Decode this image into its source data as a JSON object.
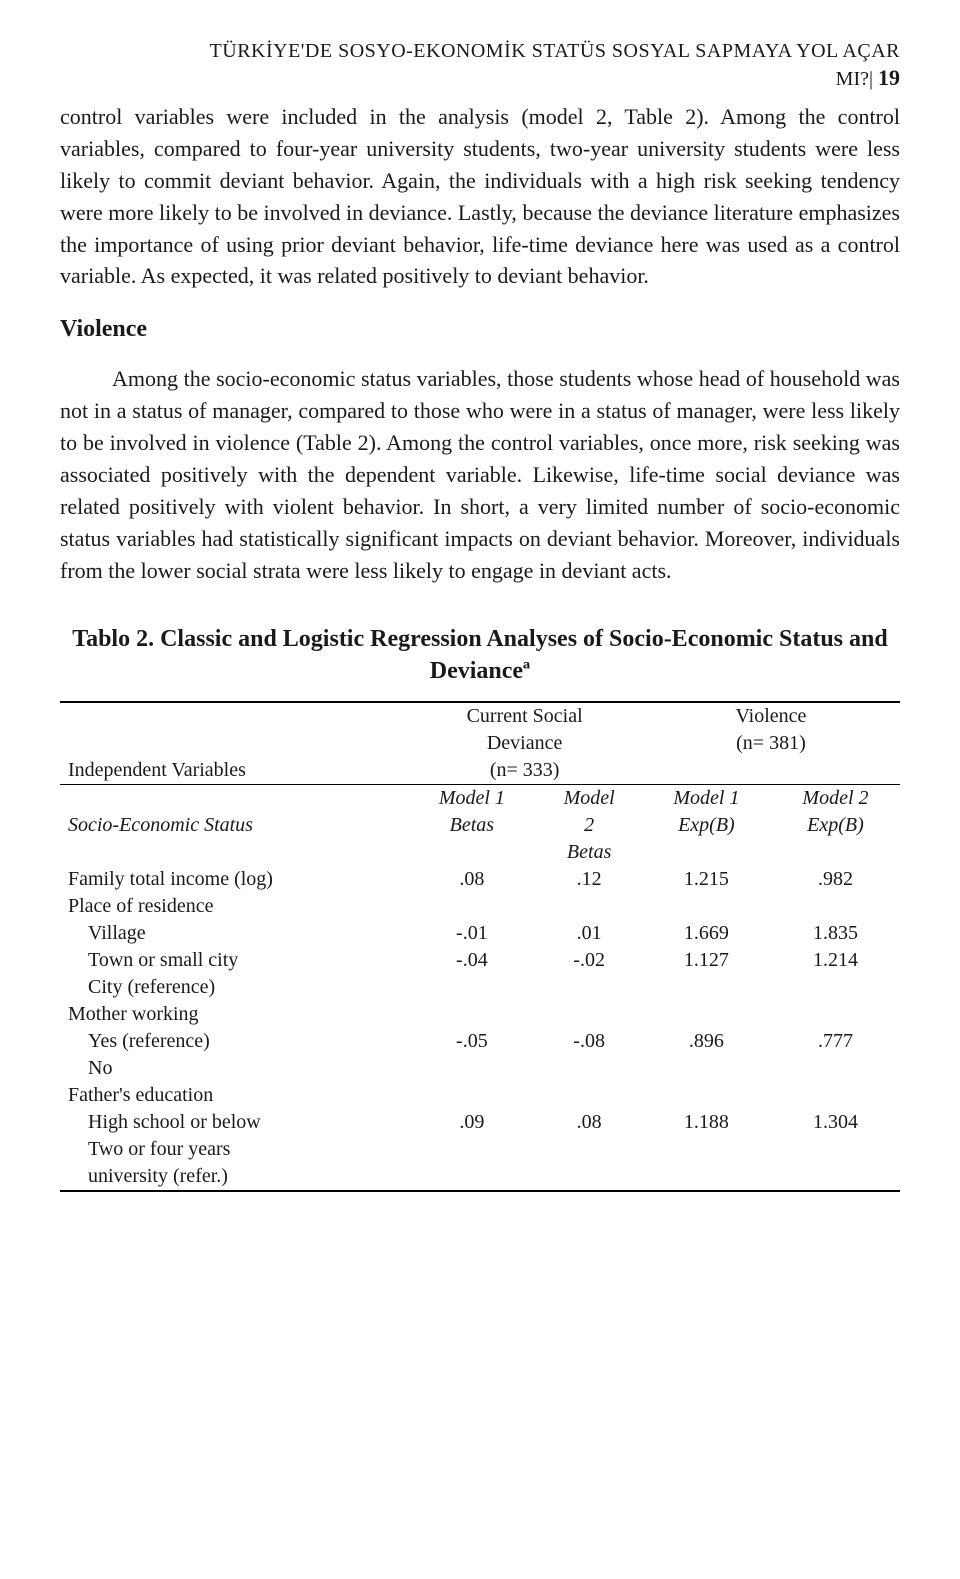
{
  "header": {
    "running_title": "TÜRKİYE'DE SOSYO-EKONOMİK STATÜS SOSYAL SAPMAYA YOL AÇAR",
    "running_title_2_prefix": "MI?| ",
    "page_number": "19"
  },
  "para1": "control variables were included in the analysis (model 2, Table 2). Among the control variables, compared to four-year university students, two-year university students were less likely to commit deviant behavior. Again, the individuals with a high risk seeking tendency were more likely to be involved in deviance. Lastly, because the deviance literature emphasizes the importance of using prior deviant behavior, life-time deviance here was used as a control variable. As expected, it was related positively to deviant behavior.",
  "section_heading": "Violence",
  "para2": "Among the socio-economic status variables, those students whose head of household was not in a status of manager, compared to those who were in a status of manager, were less likely to be involved in violence (Table 2). Among the control variables, once more, risk seeking was associated positively with the dependent variable. Likewise, life-time social deviance was related positively with violent behavior. In short, a very limited number of socio-economic status variables had statistically significant impacts on deviant behavior. Moreover, individuals from the lower social strata were less likely to engage in deviant acts.",
  "table": {
    "title": "Tablo 2. Classic and Logistic Regression Analyses of Socio-Economic Status and Devianceª",
    "header": {
      "indep_label": "Independent Variables",
      "col_group_1_line1": "Current Social",
      "col_group_1_line2": "Deviance",
      "col_group_1_line3": "(n= 333)",
      "col_group_2_line1": "Violence",
      "col_group_2_line2": "(n= 381)",
      "subhead_label": "Socio-Economic Status",
      "m1": "Model 1",
      "m1b": "Betas",
      "m2": "Model",
      "m2_line2": "2",
      "m2b": "Betas",
      "m3": "Model 1",
      "m3b": "Exp(B)",
      "m4": "Model 2",
      "m4b": "Exp(B)"
    },
    "rows": [
      {
        "label": "Family total income (log)",
        "indent": 0,
        "v": [
          ".08",
          ".12",
          "1.215",
          ".982"
        ]
      },
      {
        "label": "Place of residence",
        "indent": 0,
        "v": [
          "",
          "",
          "",
          ""
        ]
      },
      {
        "label": "Village",
        "indent": 1,
        "v": [
          "-.01",
          ".01",
          "1.669",
          "1.835"
        ]
      },
      {
        "label": "Town or small city",
        "indent": 1,
        "v": [
          "-.04",
          "-.02",
          "1.127",
          "1.214"
        ]
      },
      {
        "label": "City (reference)",
        "indent": 1,
        "v": [
          "",
          "",
          "",
          ""
        ]
      },
      {
        "label": "Mother working",
        "indent": 0,
        "v": [
          "",
          "",
          "",
          ""
        ]
      },
      {
        "label": "Yes (reference)",
        "indent": 1,
        "v": [
          "-.05",
          "-.08",
          ".896",
          ".777"
        ]
      },
      {
        "label": "No",
        "indent": 1,
        "v": [
          "",
          "",
          "",
          ""
        ]
      },
      {
        "label": "Father's education",
        "indent": 0,
        "v": [
          "",
          "",
          "",
          ""
        ]
      },
      {
        "label": "High school or below",
        "indent": 1,
        "v": [
          ".09",
          ".08",
          "1.188",
          "1.304"
        ]
      },
      {
        "label": "Two or four years",
        "indent": 1,
        "v": [
          "",
          "",
          "",
          ""
        ]
      },
      {
        "label": "university (refer.)",
        "indent": 1,
        "v": [
          "",
          "",
          "",
          ""
        ]
      }
    ]
  }
}
